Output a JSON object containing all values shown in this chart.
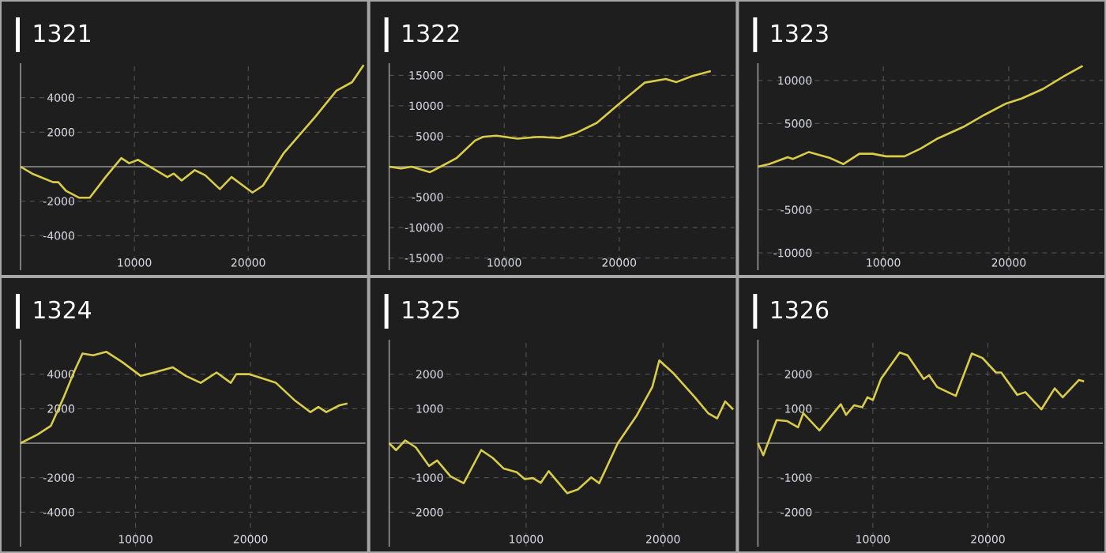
{
  "chart_data": [
    {
      "type": "line",
      "title": "1321",
      "color": "#d8cc48",
      "grid": true,
      "xlim": [
        0,
        30300
      ],
      "ylim": [
        -6000,
        6000
      ],
      "xticks": [
        10000,
        20000
      ],
      "yticks": [
        -4000,
        -2000,
        2000,
        4000
      ],
      "x": [
        0,
        1010,
        2860,
        3320,
        4000,
        5160,
        6080,
        7470,
        8850,
        9540,
        10320,
        11610,
        12900,
        13460,
        14150,
        15300,
        16220,
        17510,
        18530,
        20370,
        21290,
        23130,
        25900,
        27740,
        29120,
        30140
      ],
      "values": [
        0,
        -400,
        -900,
        -900,
        -1400,
        -1800,
        -1800,
        -600,
        500,
        200,
        400,
        -100,
        -600,
        -400,
        -800,
        -200,
        -500,
        -1300,
        -600,
        -1500,
        -1100,
        800,
        2900,
        4400,
        4900,
        5900
      ]
    },
    {
      "type": "line",
      "title": "1322",
      "color": "#d8cc48",
      "grid": true,
      "xlim": [
        0,
        30000
      ],
      "ylim": [
        -17000,
        17000
      ],
      "xticks": [
        10000,
        20000
      ],
      "yticks": [
        -15000,
        -10000,
        -5000,
        5000,
        10000,
        15000
      ],
      "x": [
        0,
        1010,
        1940,
        3550,
        4470,
        5850,
        7470,
        8160,
        9310,
        11150,
        13000,
        14840,
        16220,
        18060,
        19910,
        22210,
        24050,
        24980,
        26360,
        27970
      ],
      "values": [
        0,
        -300,
        0,
        -900,
        0,
        1400,
        4300,
        4900,
        5100,
        4600,
        4900,
        4700,
        5500,
        7200,
        10200,
        13800,
        14400,
        13900,
        14900,
        15700
      ]
    },
    {
      "type": "line",
      "title": "1323",
      "color": "#d8cc48",
      "grid": true,
      "xlim": [
        0,
        27500
      ],
      "ylim": [
        -12000,
        12000
      ],
      "xticks": [
        10000,
        20000
      ],
      "yticks": [
        -10000,
        -5000,
        5000,
        10000
      ],
      "x": [
        0,
        890,
        2370,
        2800,
        4070,
        5760,
        6820,
        8090,
        9150,
        10210,
        11690,
        12970,
        14240,
        16360,
        18050,
        19750,
        21020,
        22710,
        24410,
        25890
      ],
      "values": [
        0,
        300,
        1100,
        900,
        1700,
        1000,
        300,
        1500,
        1500,
        1200,
        1200,
        2100,
        3200,
        4600,
        6000,
        7300,
        7900,
        9000,
        10500,
        11700
      ]
    },
    {
      "type": "line",
      "title": "1324",
      "color": "#d8cc48",
      "grid": true,
      "xlim": [
        0,
        30000
      ],
      "ylim": [
        -6000,
        6000
      ],
      "xticks": [
        10000,
        20000
      ],
      "yticks": [
        -4000,
        -2000,
        2000,
        4000
      ],
      "x": [
        0,
        1470,
        2630,
        3780,
        4700,
        5390,
        6310,
        7470,
        8850,
        10460,
        11610,
        13230,
        14380,
        15670,
        17050,
        18290,
        18760,
        19910,
        20830,
        22210,
        23820,
        25210,
        25900,
        26590,
        27740,
        28430
      ],
      "values": [
        0,
        500,
        1000,
        2700,
        4200,
        5200,
        5100,
        5300,
        4700,
        3900,
        4100,
        4400,
        3900,
        3500,
        4100,
        3500,
        4000,
        4000,
        3800,
        3500,
        2500,
        1800,
        2100,
        1800,
        2200,
        2300
      ]
    },
    {
      "type": "line",
      "title": "1325",
      "color": "#d8cc48",
      "grid": true,
      "xlim": [
        0,
        25200
      ],
      "ylim": [
        -3000,
        3000
      ],
      "xticks": [
        10000,
        20000
      ],
      "yticks": [
        -2000,
        -1000,
        1000,
        2000
      ],
      "x": [
        0,
        500,
        1170,
        1940,
        2910,
        3500,
        4470,
        5440,
        6720,
        7570,
        8350,
        9320,
        9900,
        10490,
        11070,
        11650,
        13010,
        13790,
        14760,
        15340,
        16700,
        18060,
        19220,
        19730,
        20780,
        22330,
        23300,
        23960,
        24540,
        25130
      ],
      "values": [
        0,
        -200,
        80,
        -120,
        -660,
        -500,
        -960,
        -1160,
        -200,
        -430,
        -730,
        -840,
        -1040,
        -1010,
        -1150,
        -810,
        -1450,
        -1340,
        -990,
        -1160,
        0,
        790,
        1630,
        2400,
        2020,
        1330,
        870,
        720,
        1210,
        980
      ]
    },
    {
      "type": "line",
      "title": "1326",
      "color": "#d8cc48",
      "grid": true,
      "xlim": [
        0,
        30000
      ],
      "ylim": [
        -3000,
        3000
      ],
      "xticks": [
        10000,
        20000
      ],
      "yticks": [
        -2000,
        -1000,
        1000,
        2000
      ],
      "x": [
        0,
        470,
        1630,
        2560,
        3490,
        3950,
        5350,
        7210,
        7670,
        8370,
        9070,
        9530,
        10000,
        10700,
        12330,
        13020,
        14420,
        14880,
        15580,
        17210,
        18600,
        19530,
        20700,
        21160,
        22560,
        23260,
        24650,
        25810,
        26510,
        27910,
        28370
      ],
      "values": [
        0,
        -350,
        670,
        640,
        460,
        870,
        370,
        1130,
        820,
        1100,
        1040,
        1330,
        1250,
        1860,
        2630,
        2550,
        1860,
        1970,
        1630,
        1370,
        2600,
        2470,
        2050,
        2050,
        1400,
        1480,
        980,
        1590,
        1330,
        1830,
        1790
      ]
    }
  ]
}
